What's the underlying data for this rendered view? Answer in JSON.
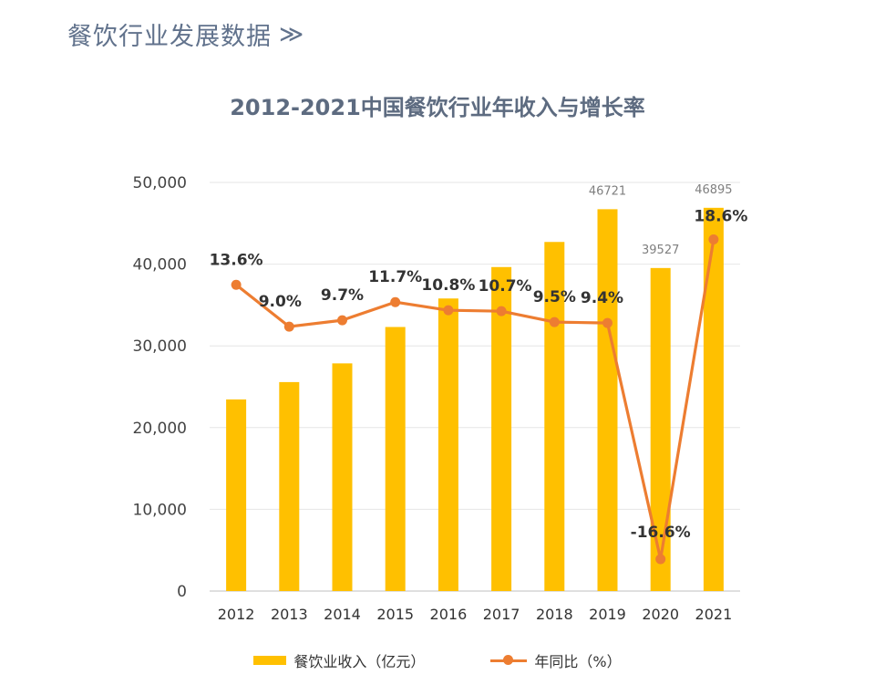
{
  "header": {
    "section_title": "餐饮行业发展数据",
    "chevron": "≫"
  },
  "colors": {
    "bar": "#FFC000",
    "line": "#ED7D31",
    "header_text": "#61728c",
    "title_text": "#5d6b80"
  },
  "chart_data": {
    "type": "bar+line",
    "title": "2012-2021中国餐饮行业年收入与增长率",
    "categories": [
      "2012",
      "2013",
      "2014",
      "2015",
      "2016",
      "2017",
      "2018",
      "2019",
      "2020",
      "2021"
    ],
    "y_axis": {
      "min": 0,
      "max": 50000,
      "ticks": [
        0,
        10000,
        20000,
        30000,
        40000,
        50000
      ],
      "tick_labels": [
        "0",
        "10,000",
        "20,000",
        "30,000",
        "40,000",
        "50,000"
      ]
    },
    "grid": true,
    "legend_position": "bottom",
    "series": [
      {
        "name": "餐饮业收入（亿元）",
        "type": "bar",
        "values": [
          23448,
          25569,
          27860,
          32310,
          35799,
          39644,
          42716,
          46721,
          39527,
          46895
        ],
        "data_labels": [
          "",
          "",
          "",
          "",
          "",
          "",
          "",
          "46721",
          "39527",
          "46895"
        ]
      },
      {
        "name": "年同比（%）",
        "type": "line",
        "values": [
          13.6,
          9.0,
          9.7,
          11.7,
          10.8,
          10.7,
          9.5,
          9.4,
          -16.6,
          18.6
        ],
        "data_labels": [
          "13.6%",
          "9.0%",
          "9.7%",
          "11.7%",
          "10.8%",
          "10.7%",
          "9.5%",
          "9.4%",
          "-16.6%",
          "18.6%"
        ]
      }
    ]
  }
}
